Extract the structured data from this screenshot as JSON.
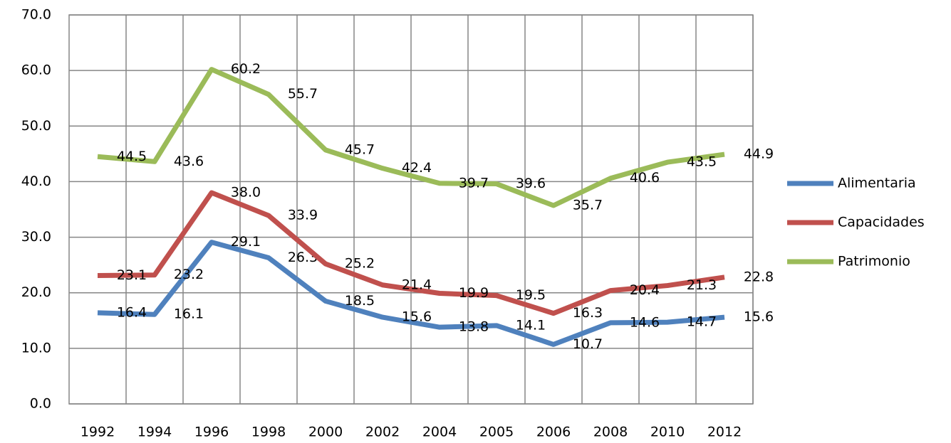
{
  "chart_data": {
    "type": "line",
    "categories": [
      "1992",
      "1994",
      "1996",
      "1998",
      "2000",
      "2002",
      "2004",
      "2005",
      "2006",
      "2008",
      "2010",
      "2012"
    ],
    "series": [
      {
        "name": "Alimentaria",
        "color": "#4f81bd",
        "values": [
          16.4,
          16.1,
          29.1,
          26.3,
          18.5,
          15.6,
          13.8,
          14.1,
          10.7,
          14.6,
          14.7,
          15.6
        ],
        "value_labels": [
          "16.4",
          "16.1",
          "29.1",
          "26.3",
          "18.5",
          "15.6",
          "13.8",
          "14.1",
          "10.7",
          "14.6",
          "14.7",
          "15.6"
        ]
      },
      {
        "name": "Capacidades",
        "color": "#c0504d",
        "values": [
          23.1,
          23.2,
          38.0,
          33.9,
          25.2,
          21.4,
          19.9,
          19.5,
          16.3,
          20.4,
          21.3,
          22.8
        ],
        "value_labels": [
          "23.1",
          "23.2",
          "38.0",
          "33.9",
          "25.2",
          "21.4",
          "19.9",
          "19.5",
          "16.3",
          "20.4",
          "21.3",
          "22.8"
        ]
      },
      {
        "name": "Patrimonio",
        "color": "#9bbb59",
        "values": [
          44.5,
          43.6,
          60.2,
          55.7,
          45.7,
          42.4,
          39.7,
          39.6,
          35.7,
          40.6,
          43.5,
          44.9
        ],
        "value_labels": [
          "44.5",
          "43.6",
          "60.2",
          "55.7",
          "45.7",
          "42.4",
          "39.7",
          "39.6",
          "35.7",
          "40.6",
          "43.5",
          "44.9"
        ]
      }
    ],
    "ylim": [
      0,
      70
    ],
    "yticks": [
      {
        "value": 0,
        "label": "0.0"
      },
      {
        "value": 10,
        "label": "10.0"
      },
      {
        "value": 20,
        "label": "20.0"
      },
      {
        "value": 30,
        "label": "30.0"
      },
      {
        "value": 40,
        "label": "40.0"
      },
      {
        "value": 50,
        "label": "50.0"
      },
      {
        "value": 60,
        "label": "60.0"
      },
      {
        "value": 70,
        "label": "70.0"
      }
    ],
    "grid": true,
    "legend": "right"
  }
}
